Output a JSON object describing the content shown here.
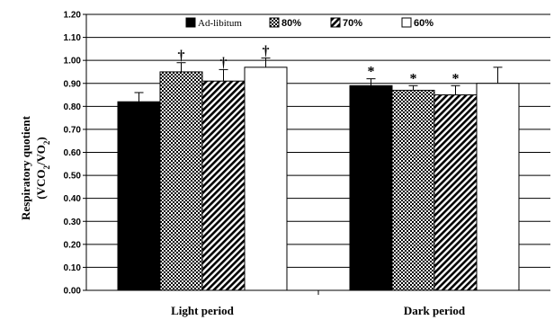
{
  "chart_data": {
    "type": "bar",
    "ylabel_line1": "Respiratory quotient",
    "ylabel_line2_prefix": "(VCO",
    "ylabel_line2_sub1": "2",
    "ylabel_line2_mid": "/VO",
    "ylabel_line2_sub2": "2",
    "ylabel_line2_suffix": ")",
    "ylim": [
      0,
      1.2
    ],
    "yticks": [
      "0.00",
      "0.10",
      "0.20",
      "0.30",
      "0.40",
      "0.50",
      "0.60",
      "0.70",
      "0.80",
      "0.90",
      "1.00",
      "1.10",
      "1.20"
    ],
    "categories": [
      "Light period",
      "Dark period"
    ],
    "legend_position": "top",
    "series": [
      {
        "name": "Ad-libitum",
        "pattern": "solid",
        "values": [
          0.82,
          0.89
        ],
        "errors": [
          0.04,
          0.03
        ],
        "annotations": [
          "",
          "*"
        ]
      },
      {
        "name": "80%",
        "pattern": "checker",
        "values": [
          0.95,
          0.87
        ],
        "errors": [
          0.04,
          0.02
        ],
        "annotations": [
          "†",
          "*"
        ]
      },
      {
        "name": "70%",
        "pattern": "diagonal",
        "values": [
          0.91,
          0.85
        ],
        "errors": [
          0.05,
          0.04
        ],
        "annotations": [
          "†",
          "*"
        ]
      },
      {
        "name": "60%",
        "pattern": "white",
        "values": [
          0.97,
          0.9
        ],
        "errors": [
          0.04,
          0.07
        ],
        "annotations": [
          "†",
          ""
        ]
      }
    ],
    "grid": true
  }
}
